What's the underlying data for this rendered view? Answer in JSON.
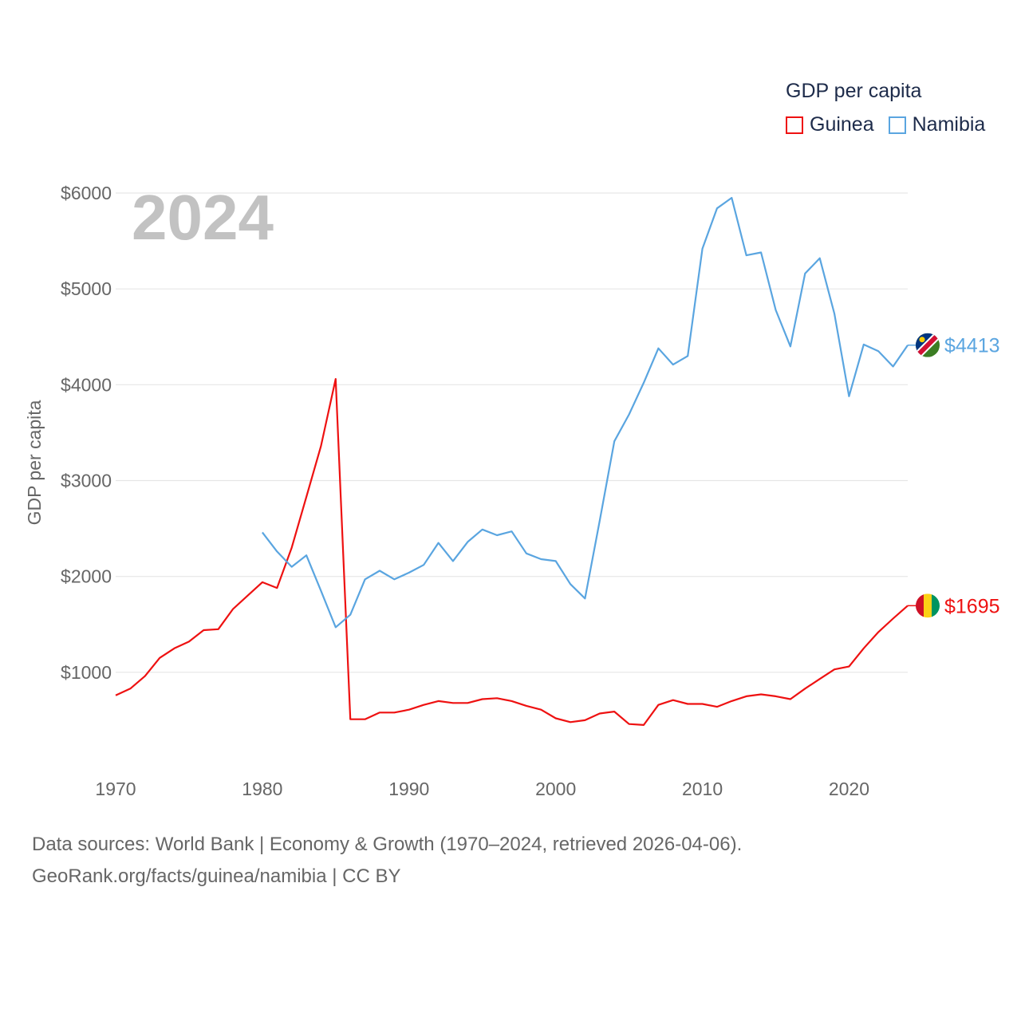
{
  "legend": {
    "title": "GDP per capita",
    "items": [
      {
        "name": "Guinea",
        "color": "#ee1111"
      },
      {
        "name": "Namibia",
        "color": "#5aa5e0"
      }
    ]
  },
  "footer": {
    "line1": "Data sources: World Bank | Economy & Growth (1970–2024, retrieved 2026-04-06).",
    "line2": "GeoRank.org/facts/guinea/namibia | CC BY"
  },
  "chart_data": {
    "type": "line",
    "title": "GDP per capita",
    "year_label": "2024",
    "xlabel": "",
    "ylabel": "GDP per capita",
    "xlim": [
      1970,
      2024
    ],
    "ylim": [
      0,
      6000
    ],
    "xticks": [
      1970,
      1980,
      1990,
      2000,
      2010,
      2020
    ],
    "yticks": [
      1000,
      2000,
      3000,
      4000,
      5000,
      6000
    ],
    "ytick_labels": [
      "$1000",
      "$2000",
      "$3000",
      "$4000",
      "$5000",
      "$6000"
    ],
    "grid": true,
    "legend_position": "top-right",
    "series": [
      {
        "name": "Guinea",
        "color": "#ee1111",
        "end_label": "$1695",
        "flag": "guinea-flag",
        "x": [
          1970,
          1971,
          1972,
          1973,
          1974,
          1975,
          1976,
          1977,
          1978,
          1979,
          1980,
          1981,
          1982,
          1983,
          1984,
          1985,
          1986,
          1987,
          1988,
          1989,
          1990,
          1991,
          1992,
          1993,
          1994,
          1995,
          1996,
          1997,
          1998,
          1999,
          2000,
          2001,
          2002,
          2003,
          2004,
          2005,
          2006,
          2007,
          2008,
          2009,
          2010,
          2011,
          2012,
          2013,
          2014,
          2015,
          2016,
          2017,
          2018,
          2019,
          2020,
          2021,
          2022,
          2023,
          2024
        ],
        "values": [
          760,
          830,
          960,
          1150,
          1250,
          1320,
          1440,
          1450,
          1660,
          1800,
          1940,
          1880,
          2300,
          2830,
          3360,
          4060,
          510,
          510,
          580,
          580,
          610,
          660,
          700,
          680,
          680,
          720,
          730,
          700,
          650,
          610,
          520,
          480,
          500,
          570,
          590,
          460,
          450,
          660,
          710,
          670,
          670,
          640,
          700,
          750,
          770,
          750,
          720,
          830,
          930,
          1030,
          1060,
          1250,
          1420,
          1560,
          1695
        ]
      },
      {
        "name": "Namibia",
        "color": "#5aa5e0",
        "end_label": "$4413",
        "flag": "namibia-flag",
        "x": [
          1980,
          1981,
          1982,
          1983,
          1984,
          1985,
          1986,
          1987,
          1988,
          1989,
          1990,
          1991,
          1992,
          1993,
          1994,
          1995,
          1996,
          1997,
          1998,
          1999,
          2000,
          2001,
          2002,
          2003,
          2004,
          2005,
          2006,
          2007,
          2008,
          2009,
          2010,
          2011,
          2012,
          2013,
          2014,
          2015,
          2016,
          2017,
          2018,
          2019,
          2020,
          2021,
          2022,
          2023,
          2024
        ],
        "values": [
          2460,
          2260,
          2100,
          2220,
          1850,
          1470,
          1600,
          1970,
          2060,
          1970,
          2040,
          2120,
          2350,
          2160,
          2360,
          2490,
          2430,
          2470,
          2240,
          2180,
          2160,
          1920,
          1770,
          2580,
          3410,
          3690,
          4020,
          4380,
          4210,
          4300,
          5420,
          5840,
          5950,
          5350,
          5380,
          4780,
          4400,
          5160,
          5320,
          4740,
          3880,
          4420,
          4350,
          4190,
          4413
        ]
      }
    ]
  }
}
